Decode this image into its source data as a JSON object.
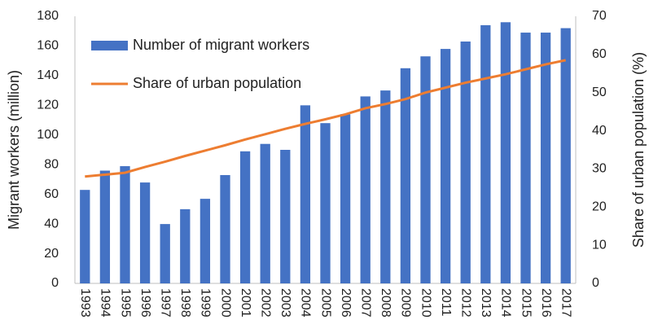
{
  "chart_data": {
    "type": "bar",
    "categories": [
      "1993",
      "1994",
      "1995",
      "1996",
      "1997",
      "1998",
      "1999",
      "2000",
      "2001",
      "2002",
      "2003",
      "2004",
      "2005",
      "2006",
      "2007",
      "2008",
      "2009",
      "2010",
      "2011",
      "2012",
      "2013",
      "2014",
      "2015",
      "2016",
      "2017"
    ],
    "series": [
      {
        "name": "Number of migrant workers",
        "type": "bar",
        "color": "#4472c4",
        "axis": "y",
        "values": [
          63,
          76,
          79,
          68,
          40,
          50,
          57,
          73,
          89,
          94,
          90,
          120,
          108,
          114,
          126,
          130,
          145,
          153,
          158,
          163,
          174,
          176,
          169,
          169,
          172
        ]
      },
      {
        "name": "Share of urban population",
        "type": "line",
        "color": "#ed7d31",
        "axis": "y2",
        "values": [
          28,
          28.5,
          29,
          30.5,
          31.9,
          33.4,
          34.8,
          36.2,
          37.7,
          39.1,
          40.5,
          41.8,
          43,
          44.3,
          45.9,
          47,
          48.3,
          50,
          51.3,
          52.6,
          53.7,
          54.8,
          56.1,
          57.4,
          58.5
        ]
      }
    ],
    "ylabel": "Migrant workers (million)",
    "y2label": "Share of urban population (%)",
    "ylim": [
      0,
      180
    ],
    "yticks": [
      0,
      20,
      40,
      60,
      80,
      100,
      120,
      140,
      160,
      180
    ],
    "y2lim": [
      0,
      70
    ],
    "y2ticks": [
      0,
      10,
      20,
      30,
      40,
      50,
      60,
      70
    ],
    "grid": false,
    "legend": "upper left"
  }
}
